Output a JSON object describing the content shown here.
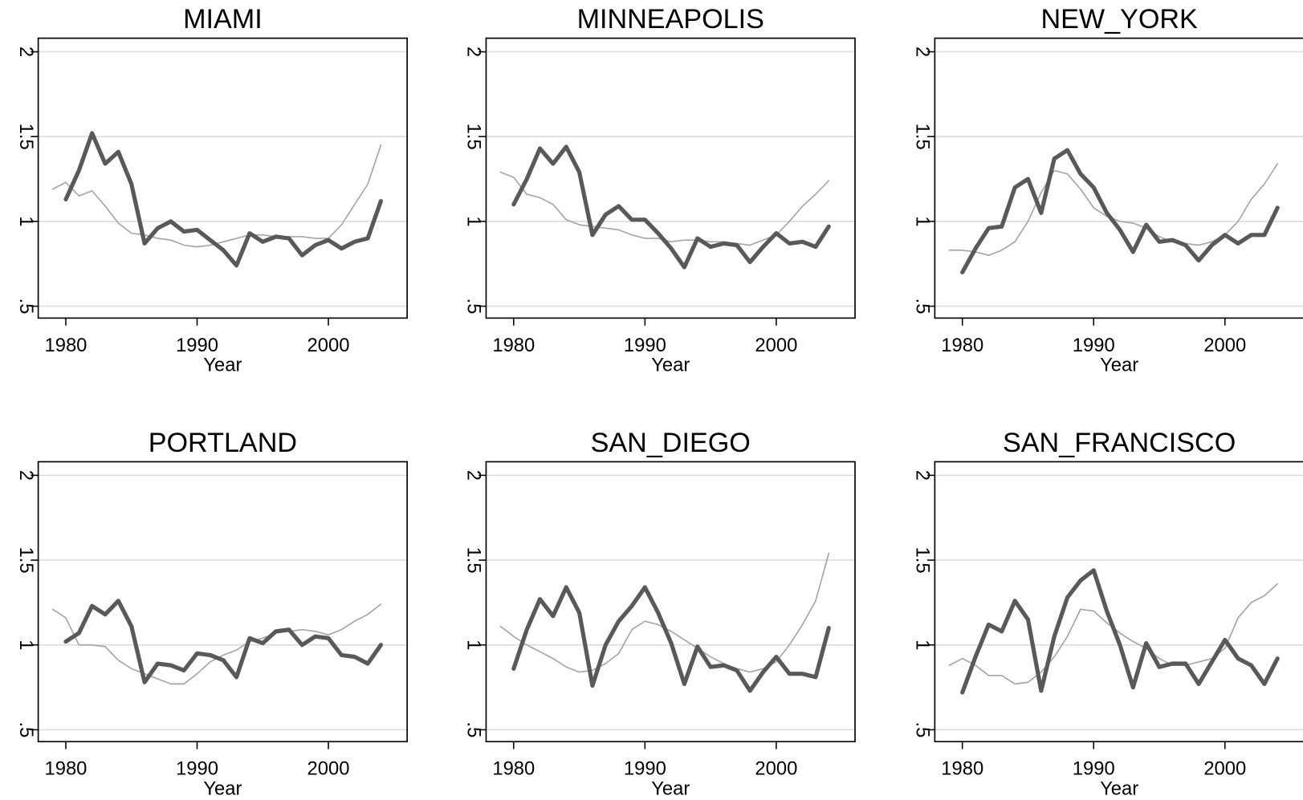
{
  "chart_data": [
    {
      "type": "line",
      "title": "MIAMI",
      "xlabel": "Year",
      "x": [
        1979,
        1980,
        1981,
        1982,
        1983,
        1984,
        1985,
        1986,
        1987,
        1988,
        1989,
        1990,
        1991,
        1992,
        1993,
        1994,
        1995,
        1996,
        1997,
        1998,
        1999,
        2000,
        2001,
        2002,
        2003,
        2004
      ],
      "series": [
        {
          "color": "#a6a6a6",
          "linewidth": 1.6,
          "values": [
            1.19,
            1.23,
            1.15,
            1.18,
            1.09,
            0.99,
            0.93,
            0.92,
            0.9,
            0.89,
            0.86,
            0.85,
            0.86,
            0.88,
            0.9,
            0.92,
            0.92,
            0.91,
            0.91,
            0.91,
            0.9,
            0.9,
            0.98,
            1.1,
            1.22,
            1.45
          ]
        },
        {
          "color": "#595959",
          "linewidth": 5,
          "values": [
            null,
            1.13,
            1.3,
            1.52,
            1.34,
            1.41,
            1.22,
            0.87,
            0.96,
            1.0,
            0.94,
            0.95,
            0.89,
            0.83,
            0.74,
            0.93,
            0.88,
            0.91,
            0.9,
            0.8,
            0.86,
            0.89,
            0.84,
            0.88,
            0.9,
            1.12
          ]
        }
      ],
      "xlim": [
        1977.9,
        2006
      ],
      "xticks": [
        1980,
        1990,
        2000
      ],
      "ylim": [
        0.43,
        2.08
      ],
      "yticks": [
        {
          "value": 0.5,
          "label": ".5"
        },
        1,
        1.5,
        2
      ],
      "grid": true
    },
    {
      "type": "line",
      "title": "MINNEAPOLIS",
      "xlabel": "Year",
      "x": [
        1979,
        1980,
        1981,
        1982,
        1983,
        1984,
        1985,
        1986,
        1987,
        1988,
        1989,
        1990,
        1991,
        1992,
        1993,
        1994,
        1995,
        1996,
        1997,
        1998,
        1999,
        2000,
        2001,
        2002,
        2003,
        2004
      ],
      "series": [
        {
          "color": "#a6a6a6",
          "linewidth": 1.6,
          "values": [
            1.29,
            1.26,
            1.16,
            1.14,
            1.1,
            1.01,
            0.98,
            0.97,
            0.96,
            0.95,
            0.92,
            0.9,
            0.9,
            0.88,
            0.89,
            0.89,
            0.88,
            0.88,
            0.87,
            0.86,
            0.89,
            0.92,
            1.0,
            1.09,
            1.16,
            1.24
          ]
        },
        {
          "color": "#595959",
          "linewidth": 5,
          "values": [
            null,
            1.1,
            1.25,
            1.43,
            1.34,
            1.44,
            1.29,
            0.92,
            1.04,
            1.09,
            1.01,
            1.01,
            0.93,
            0.84,
            0.73,
            0.9,
            0.85,
            0.87,
            0.86,
            0.76,
            0.85,
            0.93,
            0.87,
            0.88,
            0.85,
            0.97
          ]
        }
      ],
      "xlim": [
        1977.9,
        2006
      ],
      "xticks": [
        1980,
        1990,
        2000
      ],
      "ylim": [
        0.43,
        2.08
      ],
      "yticks": [
        {
          "value": 0.5,
          "label": ".5"
        },
        1,
        1.5,
        2
      ],
      "grid": true
    },
    {
      "type": "line",
      "title": "NEW_YORK",
      "xlabel": "Year",
      "x": [
        1979,
        1980,
        1981,
        1982,
        1983,
        1984,
        1985,
        1986,
        1987,
        1988,
        1989,
        1990,
        1991,
        1992,
        1993,
        1994,
        1995,
        1996,
        1997,
        1998,
        1999,
        2000,
        2001,
        2002,
        2003,
        2004
      ],
      "series": [
        {
          "color": "#a6a6a6",
          "linewidth": 1.6,
          "values": [
            0.83,
            0.83,
            0.82,
            0.8,
            0.83,
            0.88,
            1.0,
            1.17,
            1.3,
            1.28,
            1.19,
            1.08,
            1.03,
            1.0,
            0.99,
            0.96,
            0.91,
            0.88,
            0.87,
            0.86,
            0.88,
            0.92,
            1.0,
            1.13,
            1.22,
            1.34
          ]
        },
        {
          "color": "#595959",
          "linewidth": 5,
          "values": [
            null,
            0.7,
            0.84,
            0.96,
            0.97,
            1.2,
            1.25,
            1.05,
            1.37,
            1.42,
            1.28,
            1.2,
            1.05,
            0.95,
            0.82,
            0.98,
            0.88,
            0.89,
            0.86,
            0.77,
            0.86,
            0.92,
            0.87,
            0.92,
            0.92,
            1.08
          ]
        }
      ],
      "xlim": [
        1977.9,
        2006
      ],
      "xticks": [
        1980,
        1990,
        2000
      ],
      "ylim": [
        0.43,
        2.08
      ],
      "yticks": [
        {
          "value": 0.5,
          "label": ".5"
        },
        1,
        1.5,
        2
      ],
      "grid": true
    },
    {
      "type": "line",
      "title": "PORTLAND",
      "xlabel": "Year",
      "x": [
        1979,
        1980,
        1981,
        1982,
        1983,
        1984,
        1985,
        1986,
        1987,
        1988,
        1989,
        1990,
        1991,
        1992,
        1993,
        1994,
        1995,
        1996,
        1997,
        1998,
        1999,
        2000,
        2001,
        2002,
        2003,
        2004
      ],
      "series": [
        {
          "color": "#a6a6a6",
          "linewidth": 1.6,
          "values": [
            1.21,
            1.16,
            1.0,
            1.0,
            0.99,
            0.91,
            0.86,
            0.83,
            0.8,
            0.77,
            0.77,
            0.83,
            0.9,
            0.94,
            0.97,
            1.02,
            1.04,
            1.07,
            1.08,
            1.09,
            1.08,
            1.06,
            1.09,
            1.14,
            1.18,
            1.24
          ]
        },
        {
          "color": "#595959",
          "linewidth": 5,
          "values": [
            null,
            1.02,
            1.07,
            1.23,
            1.18,
            1.26,
            1.11,
            0.78,
            0.89,
            0.88,
            0.85,
            0.95,
            0.94,
            0.91,
            0.81,
            1.04,
            1.01,
            1.08,
            1.09,
            1.0,
            1.05,
            1.04,
            0.94,
            0.93,
            0.89,
            1.0
          ]
        }
      ],
      "xlim": [
        1977.9,
        2006
      ],
      "xticks": [
        1980,
        1990,
        2000
      ],
      "ylim": [
        0.43,
        2.08
      ],
      "yticks": [
        {
          "value": 0.5,
          "label": ".5"
        },
        1,
        1.5,
        2
      ],
      "grid": true
    },
    {
      "type": "line",
      "title": "SAN_DIEGO",
      "xlabel": "Year",
      "x": [
        1979,
        1980,
        1981,
        1982,
        1983,
        1984,
        1985,
        1986,
        1987,
        1988,
        1989,
        1990,
        1991,
        1992,
        1993,
        1994,
        1995,
        1996,
        1997,
        1998,
        1999,
        2000,
        2001,
        2002,
        2003,
        2004
      ],
      "series": [
        {
          "color": "#a6a6a6",
          "linewidth": 1.6,
          "values": [
            1.11,
            1.05,
            1.0,
            0.96,
            0.92,
            0.87,
            0.84,
            0.85,
            0.89,
            0.95,
            1.09,
            1.14,
            1.12,
            1.08,
            1.03,
            0.98,
            0.93,
            0.89,
            0.86,
            0.84,
            0.86,
            0.9,
            1.0,
            1.12,
            1.26,
            1.54
          ]
        },
        {
          "color": "#595959",
          "linewidth": 5,
          "values": [
            null,
            0.86,
            1.09,
            1.27,
            1.17,
            1.34,
            1.19,
            0.76,
            1.0,
            1.14,
            1.23,
            1.34,
            1.19,
            1.01,
            0.77,
            0.99,
            0.87,
            0.88,
            0.85,
            0.73,
            0.84,
            0.93,
            0.83,
            0.83,
            0.81,
            1.1
          ]
        }
      ],
      "xlim": [
        1977.9,
        2006
      ],
      "xticks": [
        1980,
        1990,
        2000
      ],
      "ylim": [
        0.43,
        2.08
      ],
      "yticks": [
        {
          "value": 0.5,
          "label": ".5"
        },
        1,
        1.5,
        2
      ],
      "grid": true
    },
    {
      "type": "line",
      "title": "SAN_FRANCISCO",
      "xlabel": "Year",
      "x": [
        1979,
        1980,
        1981,
        1982,
        1983,
        1984,
        1985,
        1986,
        1987,
        1988,
        1989,
        1990,
        1991,
        1992,
        1993,
        1994,
        1995,
        1996,
        1997,
        1998,
        1999,
        2000,
        2001,
        2002,
        2003,
        2004
      ],
      "series": [
        {
          "color": "#a6a6a6",
          "linewidth": 1.6,
          "values": [
            0.88,
            0.92,
            0.88,
            0.82,
            0.82,
            0.77,
            0.78,
            0.84,
            0.93,
            1.05,
            1.21,
            1.2,
            1.13,
            1.07,
            1.02,
            0.98,
            0.92,
            0.88,
            0.88,
            0.9,
            0.92,
            0.98,
            1.16,
            1.25,
            1.29,
            1.36
          ]
        },
        {
          "color": "#595959",
          "linewidth": 5,
          "values": [
            null,
            0.72,
            0.93,
            1.12,
            1.08,
            1.26,
            1.15,
            0.73,
            1.05,
            1.28,
            1.38,
            1.44,
            1.2,
            1.0,
            0.75,
            1.01,
            0.87,
            0.89,
            0.89,
            0.77,
            0.9,
            1.03,
            0.92,
            0.88,
            0.77,
            0.92
          ]
        }
      ],
      "xlim": [
        1977.9,
        2006
      ],
      "xticks": [
        1980,
        1990,
        2000
      ],
      "ylim": [
        0.43,
        2.08
      ],
      "yticks": [
        {
          "value": 0.5,
          "label": ".5"
        },
        1,
        1.5,
        2
      ],
      "grid": true
    }
  ]
}
